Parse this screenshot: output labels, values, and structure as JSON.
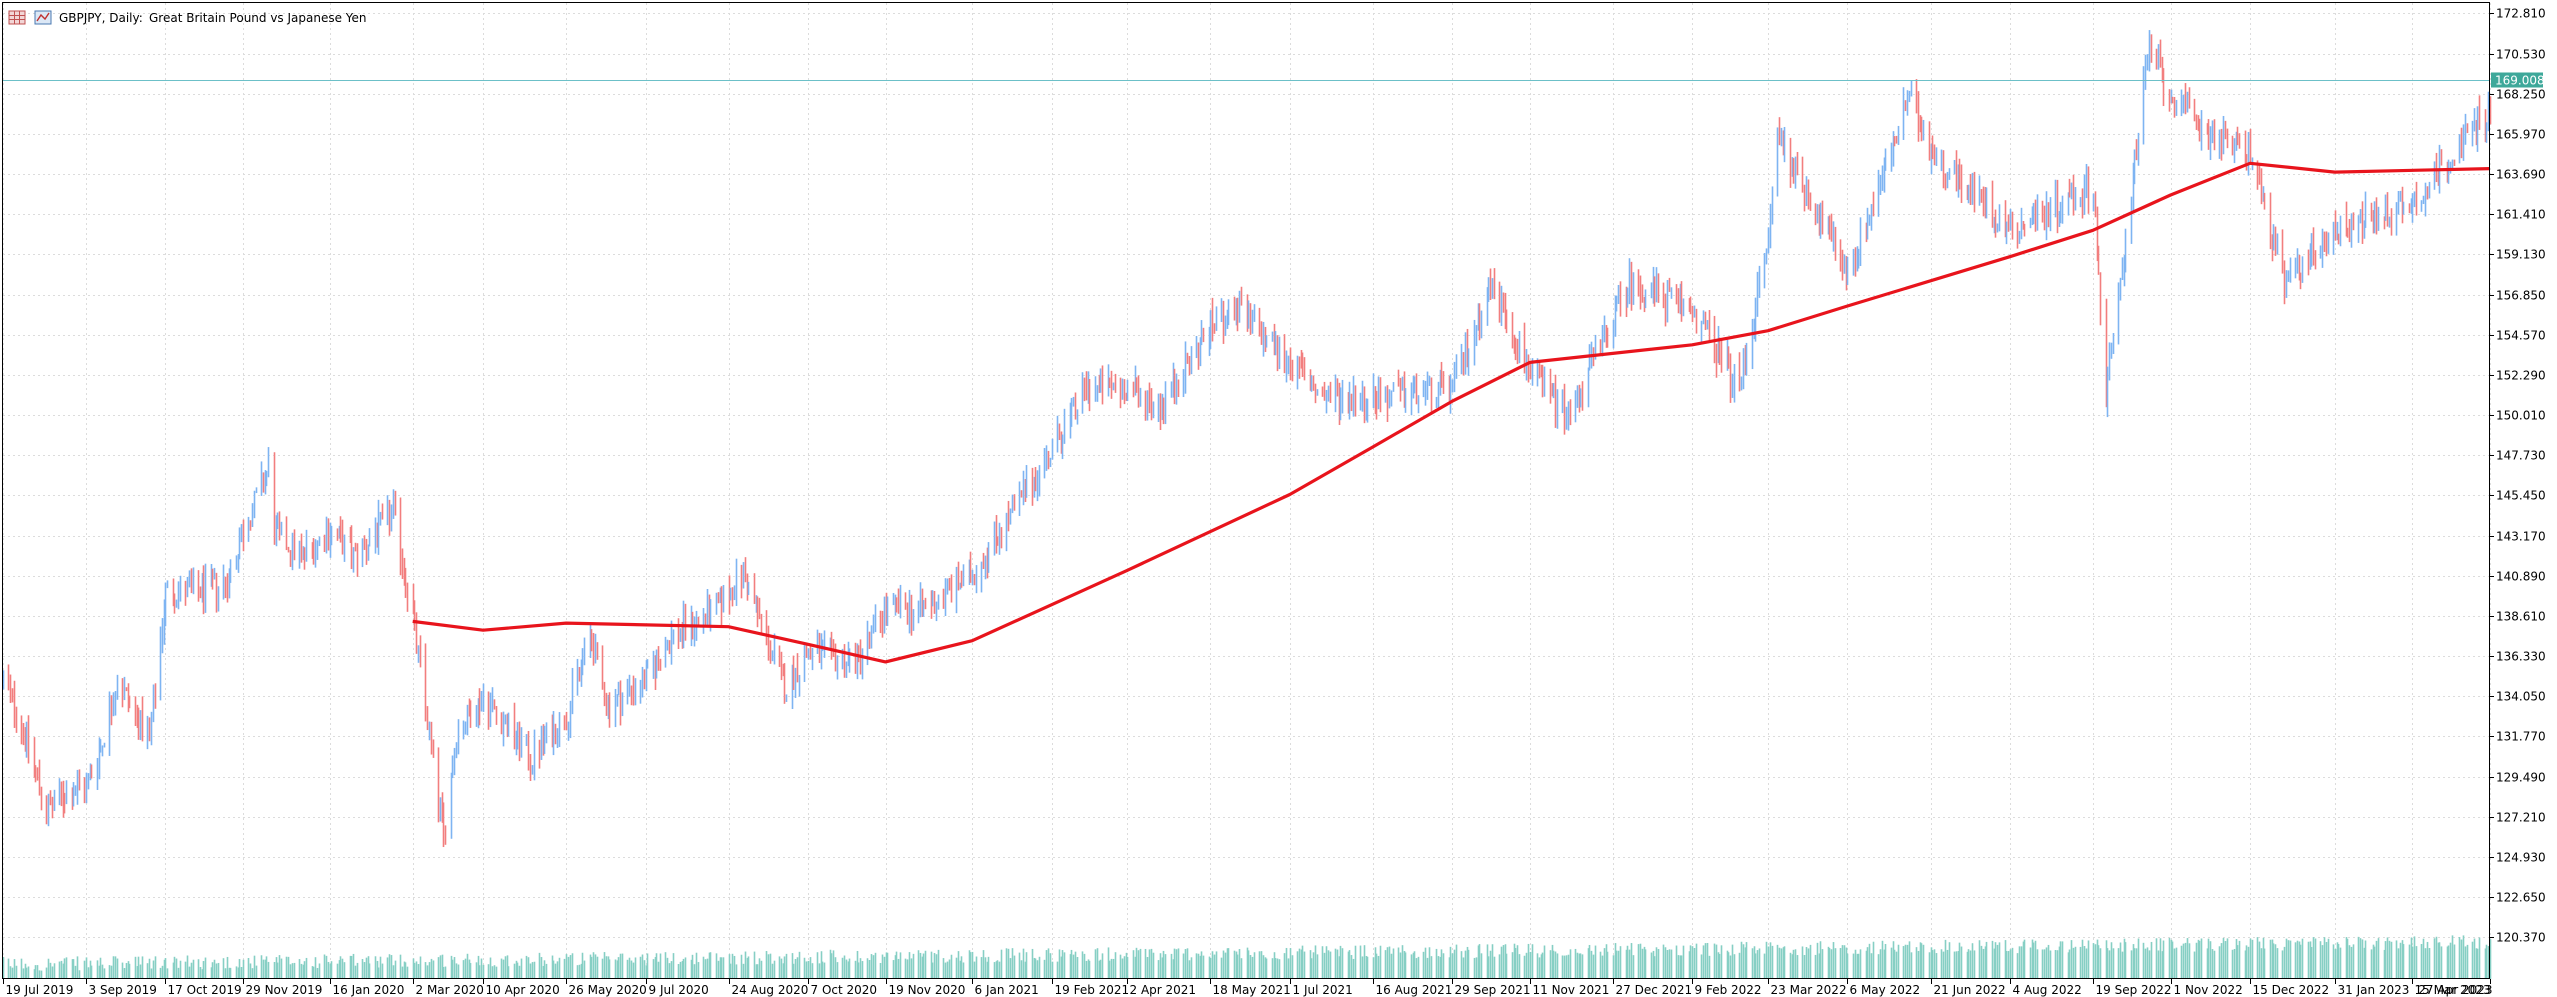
{
  "toolbar": {
    "symbol_timeframe": "GBPJPY, Daily:",
    "description": "Great Britain Pound vs Japanese Yen",
    "icons": [
      "chart-properties-icon",
      "one-click-trading-icon"
    ]
  },
  "colors": {
    "background": "#ffffff",
    "grid": "#dcdcdc",
    "bull": "#7eb4f2",
    "bear": "#f27e7e",
    "moving_average": "#e8141c",
    "volume": "#86cfc4",
    "bid_line": "#6cc0c8",
    "bid_tag": "#3ea89a",
    "axis": "#000000"
  },
  "chart_data": {
    "type": "line",
    "symbol": "GBPJPY",
    "timeframe": "Daily",
    "title": "Great Britain Pound vs Japanese Yen",
    "grid": true,
    "current_bid": 169.008,
    "current_bid_label": "169.008",
    "ylim": [
      118.0,
      173.4
    ],
    "yticks": [
      172.81,
      170.53,
      168.25,
      165.97,
      163.69,
      161.41,
      159.13,
      156.85,
      154.57,
      152.29,
      150.01,
      147.73,
      145.45,
      143.17,
      140.89,
      138.61,
      136.33,
      134.05,
      131.77,
      129.49,
      127.21,
      124.93,
      122.65,
      120.37
    ],
    "ytick_labels": [
      "172.810",
      "170.530",
      "168.250",
      "165.970",
      "163.690",
      "161.410",
      "159.130",
      "156.850",
      "154.570",
      "152.290",
      "150.010",
      "147.730",
      "145.450",
      "143.170",
      "140.890",
      "138.610",
      "136.330",
      "134.050",
      "131.770",
      "129.490",
      "127.210",
      "124.930",
      "122.650",
      "120.370"
    ],
    "xtick_labels": [
      "19 Jul 2019",
      "3 Sep 2019",
      "17 Oct 2019",
      "29 Nov 2019",
      "16 Jan 2020",
      "2 Mar 2020",
      "10 Apr 2020",
      "26 May 2020",
      "9 Jul 2020",
      "24 Aug 2020",
      "7 Oct 2020",
      "19 Nov 2020",
      "6 Jan 2021",
      "19 Feb 2021",
      "2 Apr 2021",
      "18 May 2021",
      "1 Jul 2021",
      "16 Aug 2021",
      "29 Sep 2021",
      "11 Nov 2021",
      "27 Dec 2021",
      "9 Feb 2022",
      "23 Mar 2022",
      "6 May 2022",
      "21 Jun 2022",
      "4 Aug 2022",
      "19 Sep 2022",
      "1 Nov 2022",
      "15 Dec 2022",
      "31 Jan 2023",
      "15 Mar 2023",
      "27 Apr 2023"
    ],
    "price_path": [
      [
        "19 Jul 2019",
        135.0
      ],
      [
        "29 Jul 2019",
        132.5
      ],
      [
        "12 Aug 2019",
        127.5
      ],
      [
        "22 Aug 2019",
        128.5
      ],
      [
        "3 Sep 2019",
        129.0
      ],
      [
        "12 Sep 2019",
        131.5
      ],
      [
        "20 Sep 2019",
        135.0
      ],
      [
        "8 Oct 2019",
        131.5
      ],
      [
        "17 Oct 2019",
        140.0
      ],
      [
        "5 Nov 2019",
        140.0
      ],
      [
        "20 Nov 2019",
        140.5
      ],
      [
        "29 Nov 2019",
        143.5
      ],
      [
        "13 Dec 2019",
        147.0
      ],
      [
        "16 Dec 2019",
        143.5
      ],
      [
        "31 Dec 2019",
        142.0
      ],
      [
        "16 Jan 2020",
        143.5
      ],
      [
        "30 Jan 2020",
        142.0
      ],
      [
        "20 Feb 2020",
        144.5
      ],
      [
        "2 Mar 2020",
        138.5
      ],
      [
        "19 Mar 2020",
        126.0
      ],
      [
        "26 Mar 2020",
        132.0
      ],
      [
        "10 Apr 2020",
        134.0
      ],
      [
        "22 Apr 2020",
        132.5
      ],
      [
        "6 May 2020",
        130.5
      ],
      [
        "26 May 2020",
        133.0
      ],
      [
        "8 Jun 2020",
        137.5
      ],
      [
        "18 Jun 2020",
        133.5
      ],
      [
        "9 Jul 2020",
        135.0
      ],
      [
        "24 Jul 2020",
        137.5
      ],
      [
        "17 Aug 2020",
        139.0
      ],
      [
        "1 Sep 2020",
        141.0
      ],
      [
        "24 Sep 2020",
        134.5
      ],
      [
        "7 Oct 2020",
        136.5
      ],
      [
        "2 Nov 2020",
        136.0
      ],
      [
        "19 Nov 2020",
        139.0
      ],
      [
        "9 Dec 2020",
        139.0
      ],
      [
        "6 Jan 2021",
        141.0
      ],
      [
        "19 Feb 2021",
        148.0
      ],
      [
        "10 Mar 2021",
        151.5
      ],
      [
        "2 Apr 2021",
        151.5
      ],
      [
        "20 Apr 2021",
        150.5
      ],
      [
        "18 May 2021",
        155.0
      ],
      [
        "1 Jun 2021",
        156.0
      ],
      [
        "1 Jul 2021",
        153.0
      ],
      [
        "20 Jul 2021",
        151.0
      ],
      [
        "16 Aug 2021",
        151.0
      ],
      [
        "29 Sep 2021",
        151.5
      ],
      [
        "20 Oct 2021",
        157.5
      ],
      [
        "11 Nov 2021",
        152.5
      ],
      [
        "2 Dec 2021",
        150.0
      ],
      [
        "27 Dec 2021",
        155.5
      ],
      [
        "5 Jan 2022",
        157.5
      ],
      [
        "9 Feb 2022",
        156.0
      ],
      [
        "7 Mar 2022",
        151.5
      ],
      [
        "23 Mar 2022",
        160.0
      ],
      [
        "28 Mar 2022",
        166.0
      ],
      [
        "6 May 2022",
        158.0
      ],
      [
        "9 Jun 2022",
        168.0
      ],
      [
        "21 Jun 2022",
        165.0
      ],
      [
        "4 Aug 2022",
        160.5
      ],
      [
        "19 Sep 2022",
        163.0
      ],
      [
        "26 Sep 2022",
        151.0
      ],
      [
        "20 Oct 2022",
        171.0
      ],
      [
        "1 Nov 2022",
        168.0
      ],
      [
        "22 Nov 2022",
        166.0
      ],
      [
        "15 Dec 2022",
        165.0
      ],
      [
        "3 Jan 2023",
        157.5
      ],
      [
        "31 Jan 2023",
        160.5
      ],
      [
        "15 Mar 2023",
        162.0
      ],
      [
        "27 Apr 2023",
        167.5
      ]
    ],
    "ma_path": [
      [
        "2 Mar 2020",
        138.3
      ],
      [
        "10 Apr 2020",
        137.8
      ],
      [
        "26 May 2020",
        138.2
      ],
      [
        "24 Aug 2020",
        138.0
      ],
      [
        "7 Oct 2020",
        137.0
      ],
      [
        "19 Nov 2020",
        136.0
      ],
      [
        "6 Jan 2021",
        137.2
      ],
      [
        "2 Apr 2021",
        141.2
      ],
      [
        "1 Jul 2021",
        145.5
      ],
      [
        "16 Aug 2021",
        148.2
      ],
      [
        "29 Sep 2021",
        150.8
      ],
      [
        "11 Nov 2021",
        153.0
      ],
      [
        "9 Feb 2022",
        154.0
      ],
      [
        "23 Mar 2022",
        154.8
      ],
      [
        "6 May 2022",
        156.2
      ],
      [
        "4 Aug 2022",
        159.0
      ],
      [
        "19 Sep 2022",
        160.5
      ],
      [
        "1 Nov 2022",
        162.5
      ],
      [
        "15 Dec 2022",
        164.3
      ],
      [
        "31 Jan 2023",
        163.8
      ],
      [
        "27 Apr 2023",
        164.0
      ]
    ]
  }
}
